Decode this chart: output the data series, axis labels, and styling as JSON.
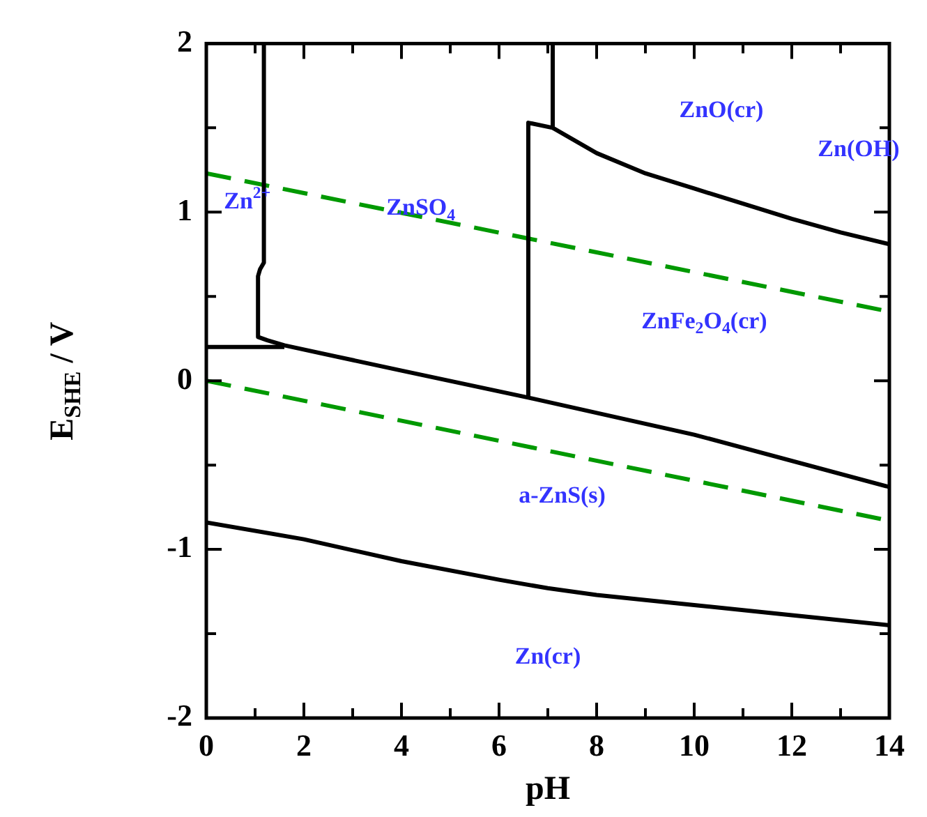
{
  "chart_data": {
    "type": "line",
    "xlabel": "pH",
    "ylabel": "E$_{SHE}$ / V",
    "xlim": [
      0,
      14
    ],
    "xticks": [
      0,
      {
        "value": 1,
        "label": null
      },
      2,
      {
        "value": 3,
        "label": null
      },
      4,
      {
        "value": 5,
        "label": null
      },
      6,
      {
        "value": 7,
        "label": null
      },
      8,
      {
        "value": 9,
        "label": null
      },
      10,
      {
        "value": 11,
        "label": null
      },
      12,
      {
        "value": 13,
        "label": null
      },
      14
    ],
    "ylim": [
      -2,
      2
    ],
    "yticks": [
      -2,
      {
        "value": -1.5,
        "label": null
      },
      -1,
      {
        "value": -0.5,
        "label": null
      },
      0,
      {
        "value": 0.5,
        "label": null
      },
      1,
      {
        "value": 1.5,
        "label": null
      },
      2
    ],
    "grid": false,
    "legend": false,
    "marker": "none",
    "series": [
      {
        "color": "#000000",
        "line_style": "solid",
        "x": [
          1.18,
          1.18,
          1.1,
          1.06,
          1.06,
          1.25,
          1.6,
          4,
          6.6,
          10,
          14
        ],
        "values": [
          2,
          0.7,
          0.66,
          0.62,
          0.26,
          0.24,
          0.21,
          0.06,
          -0.1,
          -0.32,
          -0.63
        ]
      },
      {
        "color": "#000000",
        "line_style": "solid",
        "x": [
          0,
          1.6
        ],
        "values": [
          0.2,
          0.2
        ]
      },
      {
        "color": "#000000",
        "line_style": "solid",
        "x": [
          6.6,
          6.6,
          7.1,
          8,
          9,
          10,
          11,
          12,
          13,
          14
        ],
        "values": [
          -0.1,
          1.53,
          1.5,
          1.35,
          1.23,
          1.14,
          1.05,
          0.96,
          0.88,
          0.81
        ]
      },
      {
        "color": "#000000",
        "line_style": "solid",
        "x": [
          7.1,
          7.1
        ],
        "values": [
          2,
          1.5
        ]
      },
      {
        "color": "#000000",
        "line_style": "solid",
        "x": [
          0,
          2,
          4,
          6,
          7,
          8,
          10,
          12,
          14
        ],
        "values": [
          -0.84,
          -0.94,
          -1.07,
          -1.18,
          -1.23,
          -1.27,
          -1.33,
          -1.39,
          -1.45
        ]
      },
      {
        "color": "#009900",
        "line_style": "dashed",
        "x": [
          0,
          14
        ],
        "values": [
          1.23,
          0.41
        ]
      },
      {
        "color": "#009900",
        "line_style": "dashed",
        "x": [
          0,
          14
        ],
        "values": [
          0,
          -0.83
        ]
      }
    ],
    "annotations": [
      "Zn$^{2+}$",
      "ZnSO$_{4}$",
      "ZnO(cr)",
      "Zn(OH)",
      "ZnFe$_{2}$O$_{4}$(cr)",
      "a-ZnS(s)",
      "Zn(cr)"
    ]
  }
}
